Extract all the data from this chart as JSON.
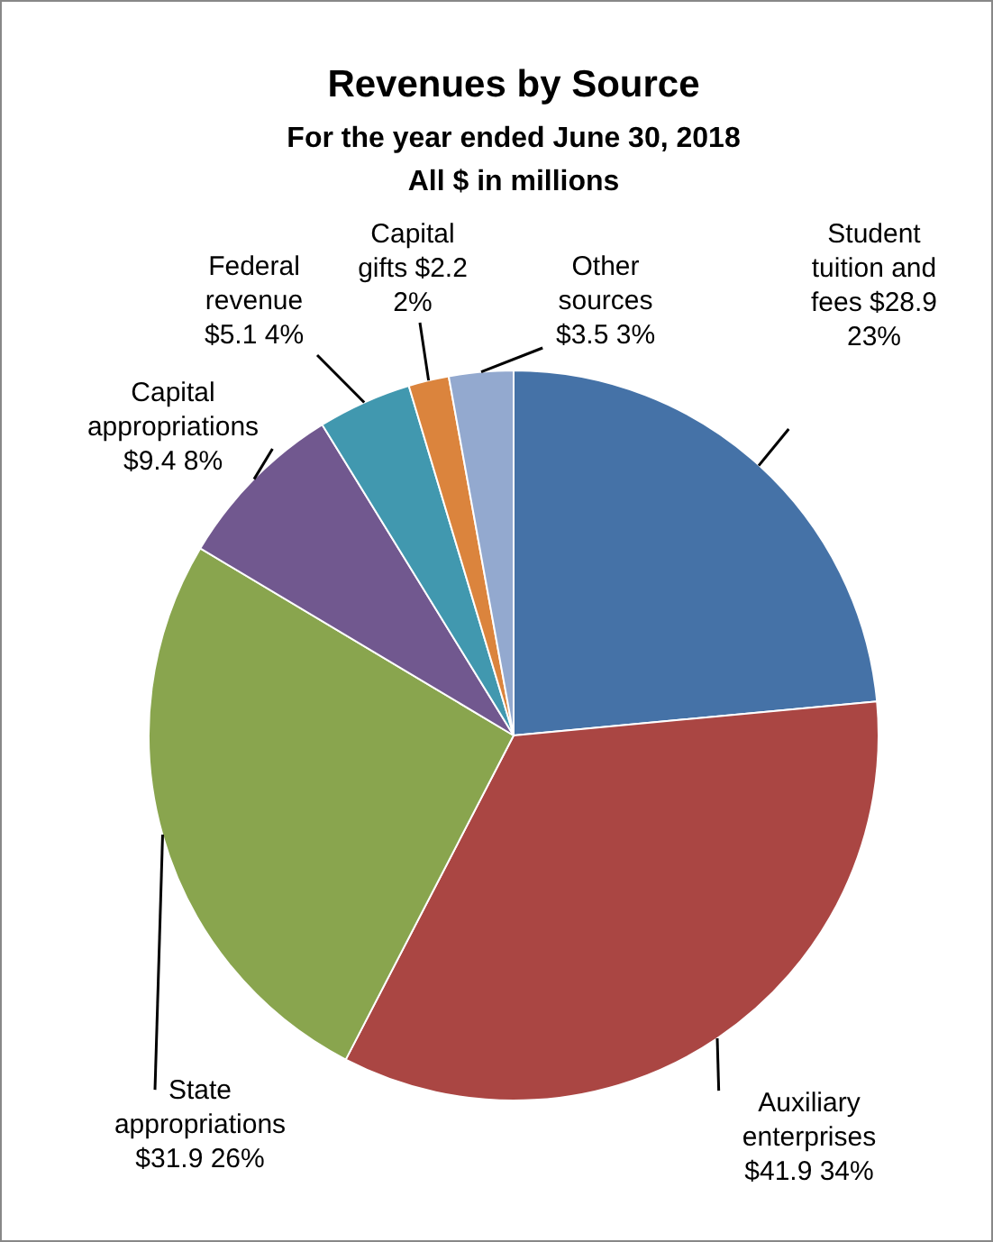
{
  "chart_data": {
    "type": "pie",
    "title": "Revenues by Source",
    "subtitle": "For the year ended June 30, 2018",
    "annotations": [
      "All $ in millions"
    ],
    "categories": [
      "Student tuition and fees",
      "Auxiliary enterprises",
      "State appropriations",
      "Capital appropriations",
      "Federal revenue",
      "Capital gifts",
      "Other sources"
    ],
    "values": [
      28.9,
      41.9,
      31.9,
      9.4,
      5.1,
      2.2,
      3.5
    ],
    "value_labels": [
      "$28.9 23%",
      "$41.9 34%",
      "$31.9 26%",
      "$9.4 8%",
      "$5.1 4%",
      "$2.2 2%",
      "$3.5 3%"
    ],
    "colors": [
      "#4572a7",
      "#aa4643",
      "#89a54e",
      "#71588f",
      "#4198af",
      "#db843d",
      "#93a9cf"
    ],
    "legend": false
  }
}
